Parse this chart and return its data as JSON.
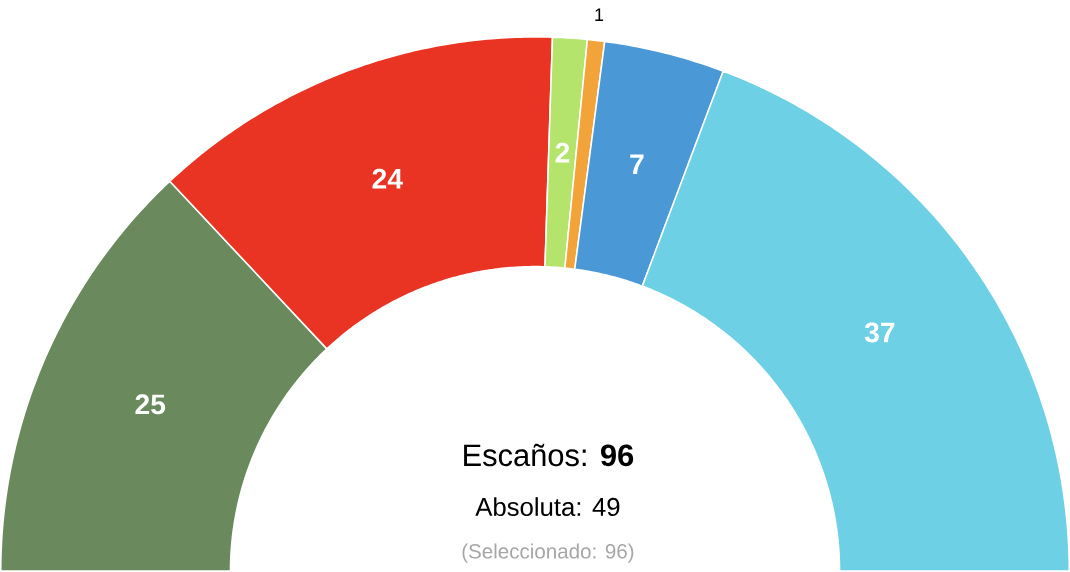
{
  "chart_data": {
    "type": "donut",
    "categories": [
      null,
      null,
      null,
      null,
      null,
      null
    ],
    "values": [
      25,
      24,
      2,
      1,
      7,
      37
    ],
    "colors": [
      "#6a8a5e",
      "#e93424",
      "#b4e46c",
      "#f2a33a",
      "#4a98d6",
      "#6dd0e4"
    ],
    "data_labels": true,
    "annotations": [
      "Escaños: **96**",
      "Absoluta: 49",
      "(Seleccionado: 96)"
    ]
  }
}
